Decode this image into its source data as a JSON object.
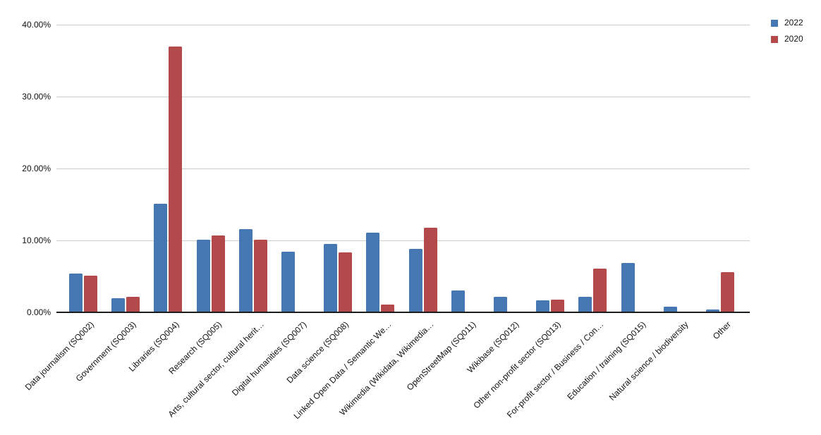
{
  "chart_data": {
    "type": "bar",
    "title": "",
    "xlabel": "",
    "ylabel": "",
    "y_format": "percent",
    "grid": true,
    "legend_position": "top-right",
    "ylim": [
      0,
      40
    ],
    "ytick_values": [
      0,
      10,
      20,
      30,
      40
    ],
    "ytick_labels": [
      "0.00%",
      "10.00%",
      "20.00%",
      "30.00%",
      "40.00%"
    ],
    "categories": [
      "Data journalism (SQ002)",
      "Government (SQ003)",
      "Libraries (SQ004)",
      "Research (SQ005)",
      "Arts, cultural sector, cultural herit…",
      "Digital humanities (SQ007)",
      "Data science (SQ008)",
      "Linked Open Data / Semantic We…",
      "Wikimedia (Wikidata, Wikimedia…",
      "OpenStreetMap (SQ011)",
      "Wikibase (SQ012)",
      "Other non-profit sector (SQ013)",
      "For-profit sector / Business / Con…",
      "Education / training (SQ015)",
      "Natural science / biodiversity",
      "Other"
    ],
    "series": [
      {
        "name": "2022",
        "color": "#4577b3",
        "values": [
          5.4,
          2.0,
          15.1,
          10.1,
          11.6,
          8.4,
          9.5,
          11.1,
          8.8,
          3.0,
          2.2,
          1.7,
          2.2,
          6.9,
          0.8,
          0.4
        ]
      },
      {
        "name": "2020",
        "color": "#b4494b",
        "values": [
          5.1,
          2.2,
          37.0,
          10.7,
          10.1,
          0,
          8.3,
          1.1,
          11.8,
          0,
          0,
          1.8,
          6.1,
          0,
          0,
          5.6
        ]
      }
    ],
    "colors": {
      "axis_text": "#111111",
      "gridline": "#cccccc",
      "baseline": "#1c1c1c",
      "background": "#ffffff"
    }
  }
}
